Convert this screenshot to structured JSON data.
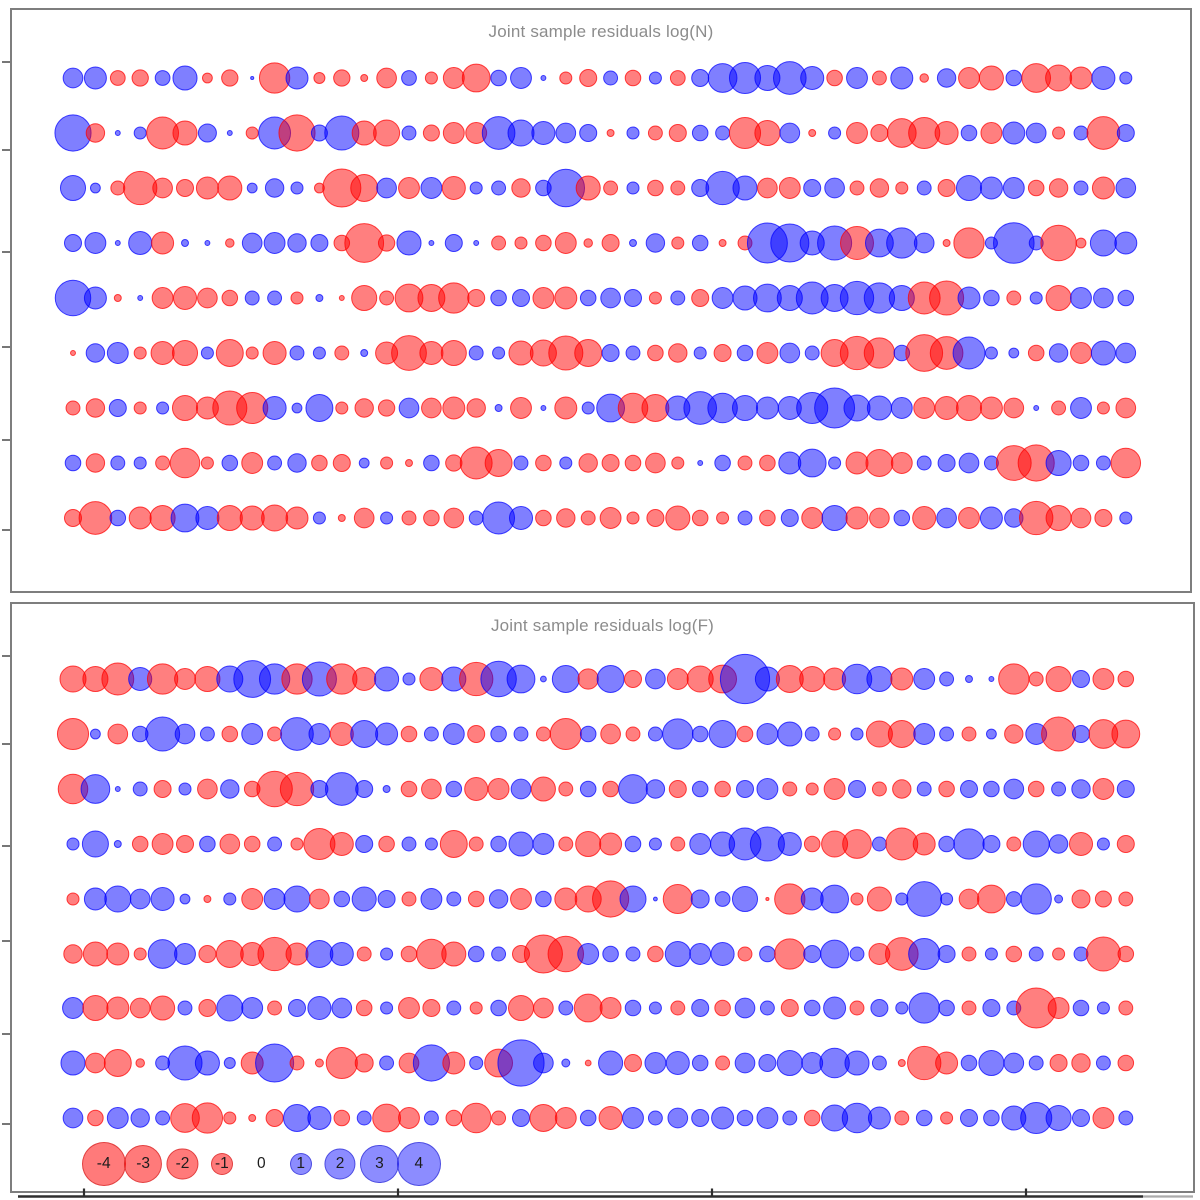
{
  "colors": {
    "negative": "#FF0000",
    "positive": "#0000FF",
    "fill_opacity": 0.5,
    "stroke_opacity": 0.72,
    "title_gray": "#8c8c8c",
    "axis_dark": "#2e2e2e",
    "panel_border": "#7e7e7e"
  },
  "legend": {
    "items": [
      {
        "label": "-4",
        "value": -4
      },
      {
        "label": "-3",
        "value": -3
      },
      {
        "label": "-2",
        "value": -2
      },
      {
        "label": "-1",
        "value": -1
      },
      {
        "label": "0",
        "value": 0
      },
      {
        "label": "1",
        "value": 1
      },
      {
        "label": "2",
        "value": 2
      },
      {
        "label": "3",
        "value": 3
      },
      {
        "label": "4",
        "value": 4
      }
    ]
  },
  "chart_data": [
    {
      "type": "bubble",
      "title": "Joint sample residuals log(N)",
      "n_rows": 9,
      "n_cols": 48,
      "size_rule": "radius proportional to sqrt(|value|), red = negative, blue = positive",
      "legend_values": [
        -4,
        -3,
        -2,
        -1,
        0,
        1,
        2,
        3,
        4
      ],
      "rows": [
        [
          0.8,
          1.0,
          -0.45,
          -0.55,
          0.45,
          1.2,
          -0.2,
          -0.55,
          0.02,
          -1.9,
          1.0,
          -0.25,
          -0.55,
          -0.1,
          -0.8,
          0.45,
          -0.3,
          -0.9,
          -1.6,
          0.5,
          0.9,
          0.05,
          -0.3,
          -0.6,
          0.4,
          -0.5,
          0.3,
          -0.45,
          0.6,
          1.7,
          2.0,
          1.3,
          2.2,
          1.1,
          -0.5,
          0.9,
          -0.4,
          1.0,
          -0.15,
          0.7,
          -0.9,
          -1.2,
          0.5,
          -1.7,
          -1.4,
          -1.0,
          1.1,
          0.3
        ],
        [
          2.7,
          -0.7,
          0.05,
          0.3,
          -2.1,
          -1.2,
          0.67,
          0.05,
          -0.3,
          2.1,
          -2.7,
          0.53,
          2.4,
          -1.2,
          -1.4,
          0.4,
          -0.53,
          -0.9,
          -0.9,
          2.2,
          1.4,
          1.1,
          0.8,
          0.6,
          -0.1,
          0.3,
          -0.4,
          -0.6,
          0.5,
          0.4,
          -2.0,
          -1.3,
          0.8,
          -0.1,
          0.3,
          -0.9,
          -0.6,
          -1.7,
          -2.0,
          -1.1,
          0.5,
          -0.9,
          1.0,
          0.8,
          -0.3,
          0.4,
          -2.2,
          0.6
        ],
        [
          1.3,
          0.2,
          -0.4,
          -2.3,
          -0.8,
          -0.6,
          -1.0,
          -1.2,
          0.2,
          0.7,
          0.3,
          -0.2,
          -3.0,
          -1.5,
          0.8,
          -0.9,
          0.9,
          -1.1,
          0.3,
          0.4,
          -0.7,
          0.5,
          2.9,
          -1.2,
          -0.4,
          0.3,
          -0.5,
          -0.4,
          0.6,
          2.3,
          1.2,
          -0.8,
          -0.9,
          0.6,
          0.8,
          -0.4,
          -0.7,
          -0.3,
          0.4,
          -0.6,
          1.3,
          1.0,
          0.9,
          -0.5,
          -0.7,
          0.4,
          -1.0,
          0.8
        ],
        [
          0.6,
          0.9,
          0.05,
          1.1,
          -1.0,
          0.1,
          0.05,
          -0.15,
          0.8,
          0.9,
          0.7,
          0.6,
          -0.5,
          -3.1,
          -0.55,
          1.2,
          0.05,
          0.6,
          0.05,
          -0.4,
          -0.3,
          -0.5,
          -0.9,
          -0.15,
          -0.6,
          0.1,
          0.7,
          -0.3,
          0.5,
          -0.1,
          -0.4,
          3.3,
          3.0,
          1.2,
          2.4,
          -2.25,
          1.6,
          1.9,
          0.8,
          -0.1,
          -1.9,
          0.3,
          3.4,
          0.4,
          -2.6,
          -0.2,
          1.4,
          1.0
        ],
        [
          2.6,
          1.0,
          -0.1,
          0.05,
          -0.9,
          -1.1,
          -0.8,
          -0.5,
          0.4,
          0.4,
          -0.3,
          0.1,
          -0.05,
          -1.3,
          -0.4,
          -1.6,
          -1.5,
          -1.9,
          -0.6,
          0.5,
          0.6,
          -0.9,
          -1.0,
          0.5,
          0.8,
          0.6,
          -0.3,
          0.4,
          -0.6,
          0.9,
          1.2,
          1.6,
          1.3,
          2.1,
          1.5,
          2.3,
          1.9,
          1.3,
          -2.1,
          -2.4,
          1.0,
          0.5,
          -0.4,
          0.3,
          -1.3,
          0.9,
          0.8,
          0.5
        ],
        [
          -0.05,
          0.7,
          0.9,
          -0.3,
          -1.1,
          -1.3,
          0.3,
          -1.5,
          -0.3,
          -1.1,
          0.4,
          0.3,
          -0.4,
          0.1,
          -1.0,
          -2.5,
          -1.1,
          -1.3,
          0.4,
          0.3,
          -1.2,
          -1.4,
          -2.4,
          -1.5,
          0.6,
          0.4,
          -0.5,
          -0.7,
          0.3,
          -0.6,
          0.5,
          -0.9,
          0.8,
          0.4,
          -1.5,
          -2.3,
          -1.9,
          0.5,
          -2.8,
          -2.2,
          2.1,
          0.3,
          0.2,
          -0.5,
          0.7,
          -0.9,
          1.2,
          0.8
        ],
        [
          -0.4,
          -0.7,
          0.6,
          -0.3,
          0.3,
          -1.3,
          -1.0,
          -2.4,
          -2.0,
          1.1,
          0.2,
          1.5,
          -0.3,
          -0.7,
          -0.55,
          0.8,
          -0.8,
          -1.0,
          -0.7,
          0.1,
          -0.9,
          0.05,
          -1.0,
          0.3,
          1.6,
          -1.8,
          -1.5,
          1.2,
          2.2,
          1.8,
          1.3,
          1.0,
          1.1,
          2.0,
          3.3,
          1.4,
          1.2,
          0.9,
          -0.9,
          -1.1,
          -1.3,
          -1.0,
          -0.8,
          0.05,
          -0.4,
          0.9,
          -0.3,
          -0.8
        ],
        [
          0.5,
          -0.7,
          0.4,
          0.3,
          -0.4,
          -1.8,
          -0.3,
          0.5,
          -0.9,
          0.4,
          0.7,
          -0.5,
          -0.6,
          0.2,
          -0.3,
          -0.1,
          0.5,
          -0.55,
          -2.1,
          -1.5,
          0.4,
          -0.5,
          0.3,
          -0.7,
          -0.6,
          -0.5,
          -0.8,
          -0.3,
          0.05,
          0.5,
          -0.4,
          -0.5,
          1.0,
          1.6,
          0.3,
          -1.0,
          -1.5,
          -0.9,
          0.4,
          0.6,
          0.8,
          0.4,
          -2.5,
          -2.7,
          1.3,
          0.5,
          0.4,
          -1.8
        ],
        [
          -0.6,
          -2.2,
          0.5,
          -1.0,
          -1.3,
          1.6,
          1.1,
          -1.3,
          -1.2,
          -1.4,
          -1.0,
          0.3,
          -0.1,
          -0.8,
          0.3,
          -0.4,
          -0.5,
          -0.8,
          0.4,
          2.1,
          1.1,
          -0.5,
          -0.7,
          -0.4,
          -0.9,
          -0.3,
          -0.6,
          -1.2,
          -0.5,
          -0.3,
          0.4,
          -0.5,
          0.6,
          -0.9,
          1.3,
          -1.0,
          -0.8,
          0.5,
          -1.1,
          0.8,
          -0.9,
          1.0,
          0.7,
          -2.3,
          -1.3,
          -0.8,
          -0.6,
          0.3
        ]
      ]
    },
    {
      "type": "bubble",
      "title": "Joint sample residuals log(F)",
      "n_rows": 9,
      "n_cols": 48,
      "size_rule": "radius proportional to sqrt(|value|), red = negative, blue = positive",
      "legend_values": [
        -4,
        -3,
        -2,
        -1,
        0,
        1,
        2,
        3,
        4
      ],
      "rows": [
        [
          -1.4,
          -1.3,
          -2.1,
          1.1,
          -1.9,
          -0.9,
          -1.3,
          1.4,
          2.8,
          1.9,
          -1.9,
          2.4,
          -1.9,
          -1.1,
          1.2,
          0.3,
          -1.1,
          1.2,
          -2.3,
          2.6,
          1.6,
          0.07,
          1.5,
          -0.85,
          1.5,
          -0.6,
          0.8,
          -0.9,
          -1.4,
          -1.6,
          5.0,
          1.2,
          -1.5,
          -1.3,
          -1.0,
          1.8,
          1.3,
          -1.0,
          0.9,
          0.4,
          0.1,
          0.05,
          -1.9,
          -0.4,
          -1.3,
          0.6,
          -0.9,
          -0.5
        ],
        [
          -2.0,
          0.2,
          -0.8,
          0.5,
          2.4,
          0.8,
          0.4,
          -0.5,
          0.9,
          -0.4,
          2.2,
          0.9,
          -1.1,
          1.5,
          1.0,
          -0.5,
          0.4,
          0.9,
          -0.6,
          0.5,
          0.4,
          -0.4,
          -2.0,
          0.5,
          -0.8,
          -0.4,
          0.4,
          1.9,
          0.5,
          1.5,
          -0.5,
          0.9,
          1.2,
          0.4,
          -0.3,
          0.3,
          -1.4,
          -1.5,
          0.9,
          0.4,
          -0.4,
          0.2,
          -0.7,
          0.9,
          -2.4,
          0.6,
          -1.7,
          -1.6
        ],
        [
          -1.8,
          1.7,
          0.05,
          0.4,
          -0.6,
          0.3,
          -0.8,
          0.7,
          -0.5,
          -2.6,
          -2.3,
          0.6,
          2.2,
          0.6,
          0.1,
          -0.5,
          -0.8,
          0.5,
          -1.1,
          -0.9,
          0.8,
          -1.2,
          -0.4,
          0.5,
          -0.5,
          1.7,
          0.7,
          -0.6,
          0.5,
          -0.5,
          0.6,
          0.9,
          -0.4,
          -0.3,
          -0.9,
          0.6,
          -0.4,
          -0.7,
          0.4,
          -0.5,
          0.6,
          0.5,
          0.8,
          -0.5,
          0.4,
          0.7,
          -0.9,
          0.6
        ],
        [
          0.3,
          1.4,
          0.1,
          -0.5,
          -0.9,
          -0.6,
          0.5,
          -0.8,
          -0.5,
          0.4,
          -0.3,
          -2.0,
          -1.1,
          0.6,
          -0.5,
          0.4,
          0.3,
          -1.5,
          -0.4,
          0.5,
          1.2,
          0.9,
          -0.4,
          -1.3,
          -1.0,
          0.5,
          0.3,
          -0.4,
          0.9,
          1.2,
          2.1,
          2.4,
          1.1,
          -0.5,
          -1.4,
          -1.7,
          0.4,
          -2.1,
          -1.0,
          0.5,
          1.9,
          0.6,
          -0.4,
          1.4,
          0.7,
          -1.1,
          0.3,
          -0.6
        ],
        [
          -0.3,
          1.0,
          1.4,
          0.8,
          1.1,
          0.2,
          -0.1,
          0.3,
          -0.9,
          0.9,
          1.4,
          -0.8,
          0.5,
          1.2,
          0.6,
          -0.4,
          0.9,
          0.4,
          -0.5,
          0.7,
          -0.9,
          0.5,
          -1.0,
          -1.4,
          -2.7,
          1.4,
          0.03,
          -1.75,
          0.67,
          0.45,
          1.3,
          -0.02,
          -1.9,
          1.0,
          1.6,
          -0.3,
          -1.2,
          0.3,
          2.5,
          0.3,
          -0.8,
          -1.6,
          0.45,
          1.9,
          0.13,
          -0.67,
          -0.53,
          -0.4
        ],
        [
          -0.7,
          -1.2,
          -1.0,
          -0.3,
          1.7,
          0.9,
          -0.6,
          -1.5,
          -1.1,
          -2.3,
          -1.0,
          1.5,
          1.1,
          -0.4,
          0.3,
          -0.5,
          -1.8,
          -1.2,
          0.5,
          0.4,
          -0.6,
          -3.0,
          -2.6,
          0.9,
          0.5,
          0.4,
          -0.5,
          1.3,
          0.9,
          1.1,
          -0.4,
          0.5,
          -1.9,
          0.6,
          1.6,
          0.4,
          -0.9,
          -2.2,
          2.0,
          0.6,
          -0.4,
          0.3,
          -0.5,
          0.4,
          -0.3,
          0.4,
          -2.4,
          -0.5
        ],
        [
          0.9,
          -1.3,
          -1.0,
          -0.8,
          -1.2,
          0.4,
          -0.6,
          1.4,
          0.9,
          -0.4,
          0.6,
          1.1,
          0.8,
          -0.5,
          0.3,
          -0.9,
          -0.6,
          0.4,
          -0.3,
          0.5,
          -1.3,
          -0.8,
          0.4,
          -1.6,
          -0.9,
          0.5,
          0.3,
          -0.4,
          0.6,
          -0.5,
          0.8,
          0.4,
          -0.6,
          0.5,
          1.0,
          -0.4,
          0.6,
          0.3,
          1.9,
          0.5,
          -0.4,
          0.6,
          0.4,
          -3.3,
          -0.9,
          0.5,
          0.3,
          -0.4
        ],
        [
          1.2,
          -0.8,
          -1.5,
          -0.15,
          0.4,
          2.4,
          1.2,
          0.25,
          -1.0,
          3.0,
          -0.4,
          -0.13,
          -2.0,
          -0.67,
          0.4,
          -0.8,
          2.7,
          -1.0,
          0.35,
          -1.6,
          4.4,
          0.8,
          0.13,
          -0.07,
          1.2,
          -0.6,
          0.9,
          1.1,
          0.5,
          -0.4,
          0.8,
          0.6,
          1.3,
          0.9,
          1.8,
          1.2,
          0.4,
          -0.1,
          -2.3,
          -1.0,
          0.5,
          1.3,
          0.8,
          0.4,
          -0.6,
          -0.7,
          0.4,
          -0.5
        ],
        [
          0.8,
          -0.5,
          0.9,
          0.7,
          0.4,
          -1.7,
          -1.9,
          -0.3,
          -0.1,
          -0.6,
          1.5,
          1.1,
          -0.5,
          0.4,
          -1.6,
          -0.9,
          0.4,
          -0.5,
          -1.8,
          -0.4,
          0.6,
          -1.5,
          -0.9,
          0.5,
          -1.1,
          0.9,
          0.4,
          0.8,
          0.6,
          1.0,
          0.5,
          0.9,
          0.4,
          -0.5,
          1.4,
          1.8,
          1.0,
          -0.4,
          0.5,
          -0.3,
          0.6,
          0.5,
          1.2,
          2.0,
          1.3,
          0.6,
          -0.9,
          0.4
        ]
      ]
    }
  ]
}
